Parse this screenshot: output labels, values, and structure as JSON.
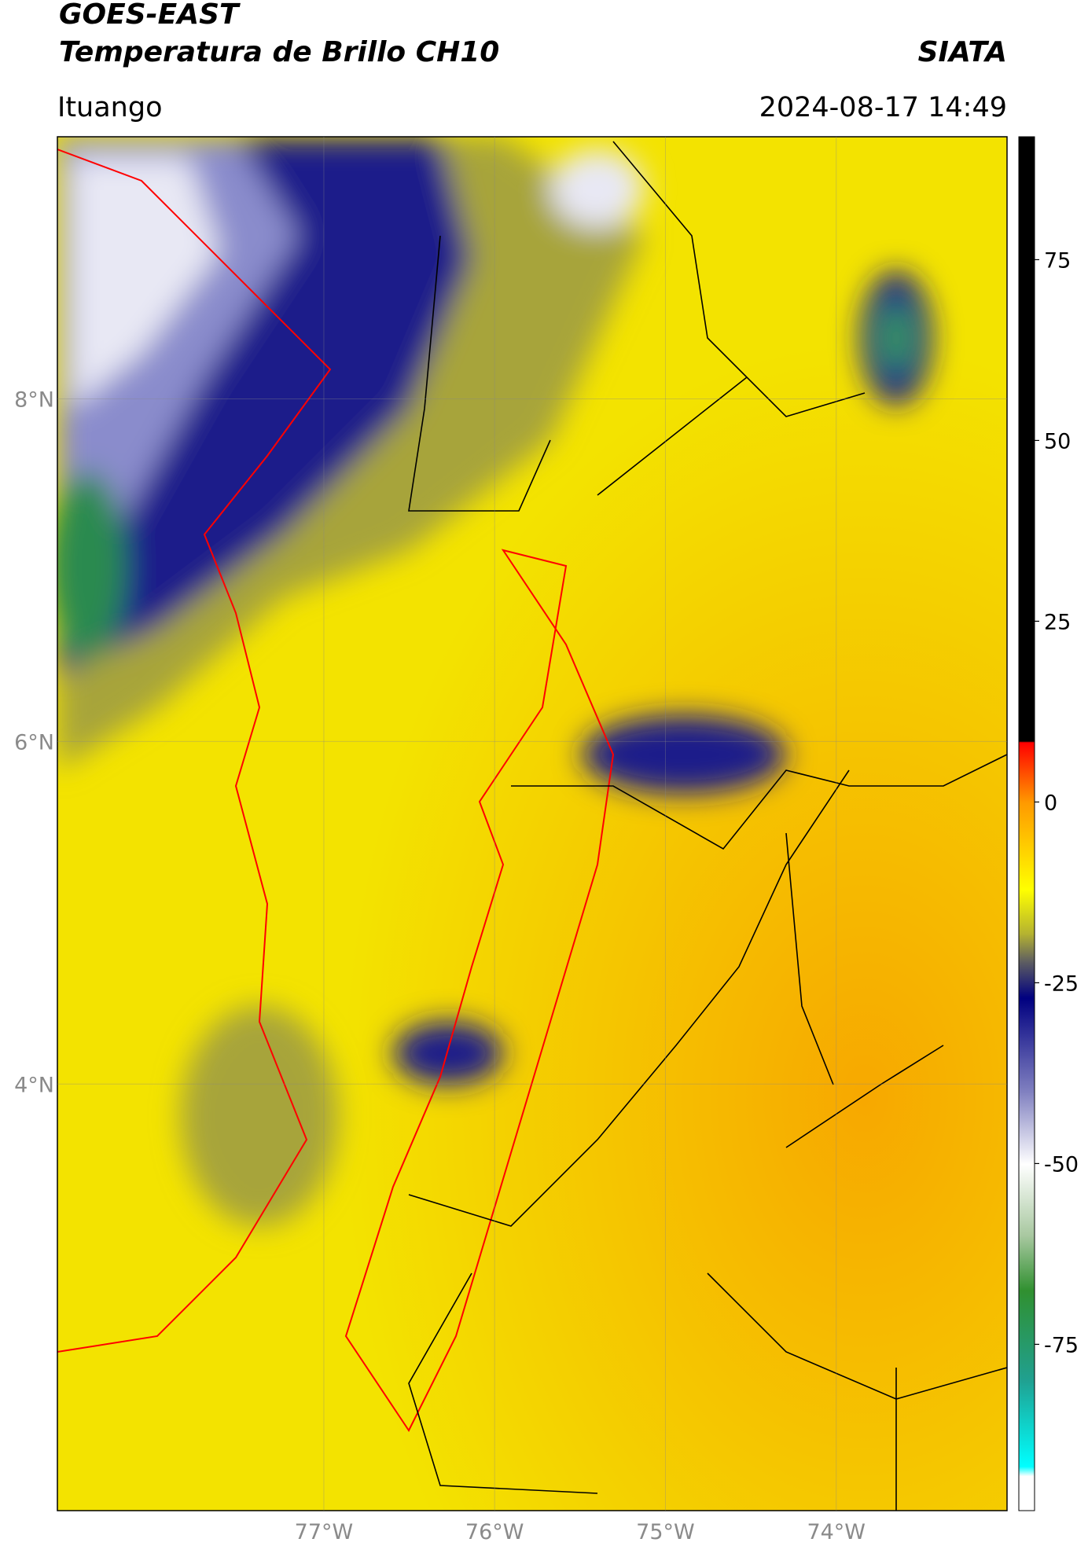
{
  "header": {
    "title": "GOES-EAST",
    "subtitle": "Temperatura de Brillo CH10",
    "brand": "SIATA",
    "location": "Ituango",
    "timestamp": "2024-08-17 14:49"
  },
  "map": {
    "xlim": [
      -78.56,
      -73.0
    ],
    "ylim": [
      1.51,
      9.53
    ],
    "xticks": [
      {
        "value": -77,
        "label": "77°W"
      },
      {
        "value": -76,
        "label": "76°W"
      },
      {
        "value": -75,
        "label": "75°W"
      },
      {
        "value": -74,
        "label": "74°W"
      }
    ],
    "yticks": [
      {
        "value": 8,
        "label": "8°N"
      },
      {
        "value": 6,
        "label": "6°N"
      },
      {
        "value": 4,
        "label": "4°N"
      }
    ]
  },
  "colorbar": {
    "lim": [
      -98,
      92
    ],
    "ticks": [
      75,
      50,
      25,
      0,
      -25,
      -50,
      -75
    ]
  }
}
